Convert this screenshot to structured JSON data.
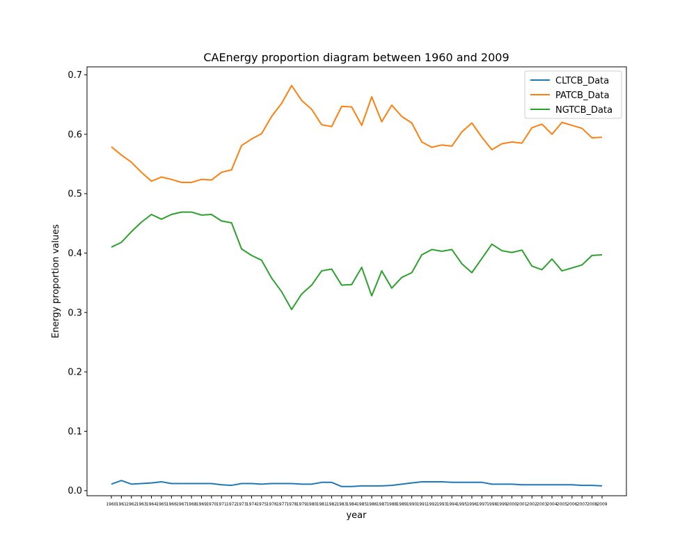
{
  "chart_data": {
    "type": "line",
    "title": "CAEnergy  proportion diagram between 1960 and 2009",
    "xlabel": "year",
    "ylabel": "Energy proportion values",
    "ylim": [
      -0.0085,
      0.7135
    ],
    "y_ticks": [
      "0.0",
      "0.1",
      "0.2",
      "0.3",
      "0.4",
      "0.5",
      "0.6",
      "0.7"
    ],
    "y_tick_values": [
      0.0,
      0.1,
      0.2,
      0.3,
      0.4,
      0.5,
      0.6,
      0.7
    ],
    "legend_position": "top-right",
    "grid": false,
    "x": [
      "1960",
      "1961",
      "1962",
      "1963",
      "1964",
      "1965",
      "1966",
      "1967",
      "1968",
      "1969",
      "1970",
      "1971",
      "1972",
      "1973",
      "1974",
      "1975",
      "1976",
      "1977",
      "1978",
      "1979",
      "1980",
      "1981",
      "1982",
      "1983",
      "1984",
      "1985",
      "1986",
      "1987",
      "1988",
      "1989",
      "1990",
      "1991",
      "1992",
      "1993",
      "1994",
      "1995",
      "1996",
      "1997",
      "1998",
      "1999",
      "2000",
      "2001",
      "2002",
      "2003",
      "2004",
      "2005",
      "2006",
      "2007",
      "2008",
      "2009"
    ],
    "series": [
      {
        "name": "CLTCB_Data",
        "color": "#1f77b4",
        "values": [
          0.011,
          0.017,
          0.011,
          0.012,
          0.013,
          0.015,
          0.012,
          0.012,
          0.012,
          0.012,
          0.012,
          0.01,
          0.009,
          0.012,
          0.012,
          0.011,
          0.012,
          0.012,
          0.012,
          0.011,
          0.011,
          0.014,
          0.014,
          0.007,
          0.007,
          0.008,
          0.008,
          0.008,
          0.009,
          0.011,
          0.013,
          0.015,
          0.015,
          0.015,
          0.014,
          0.014,
          0.014,
          0.014,
          0.011,
          0.011,
          0.011,
          0.01,
          0.01,
          0.01,
          0.01,
          0.01,
          0.01,
          0.009,
          0.009,
          0.008
        ]
      },
      {
        "name": "PATCB_Data",
        "color": "#ff7f0e",
        "values": [
          0.579,
          0.565,
          0.553,
          0.536,
          0.521,
          0.528,
          0.524,
          0.519,
          0.519,
          0.524,
          0.523,
          0.536,
          0.54,
          0.581,
          0.592,
          0.601,
          0.63,
          0.652,
          0.682,
          0.657,
          0.642,
          0.616,
          0.613,
          0.647,
          0.646,
          0.615,
          0.663,
          0.621,
          0.649,
          0.63,
          0.619,
          0.587,
          0.578,
          0.582,
          0.58,
          0.604,
          0.619,
          0.595,
          0.574,
          0.584,
          0.587,
          0.585,
          0.611,
          0.617,
          0.6,
          0.62,
          0.615,
          0.61,
          0.594,
          0.595
        ]
      },
      {
        "name": "NGTCB_Data",
        "color": "#2ca02c",
        "values": [
          0.41,
          0.418,
          0.436,
          0.452,
          0.465,
          0.457,
          0.465,
          0.469,
          0.469,
          0.464,
          0.465,
          0.454,
          0.451,
          0.407,
          0.396,
          0.388,
          0.358,
          0.335,
          0.305,
          0.331,
          0.346,
          0.37,
          0.373,
          0.346,
          0.347,
          0.376,
          0.328,
          0.37,
          0.341,
          0.359,
          0.367,
          0.397,
          0.406,
          0.403,
          0.406,
          0.382,
          0.367,
          0.391,
          0.415,
          0.404,
          0.401,
          0.405,
          0.378,
          0.372,
          0.39,
          0.37,
          0.375,
          0.38,
          0.396,
          0.397
        ]
      }
    ]
  }
}
